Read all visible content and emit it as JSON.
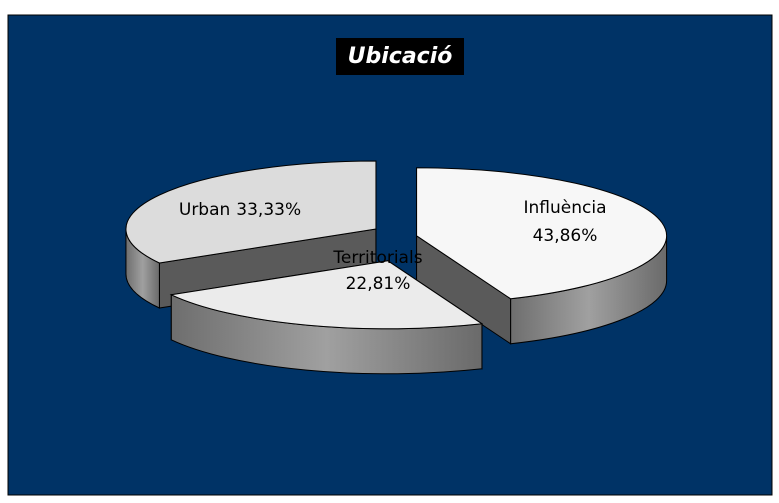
{
  "chart_data": {
    "type": "pie3d",
    "title": "Ubicació",
    "categories": [
      "Influència",
      "Territorials",
      "Urban"
    ],
    "values": [
      43.86,
      22.81,
      33.33
    ],
    "value_labels": [
      "43,86%",
      "22,81%",
      "33,33%"
    ],
    "colors": [
      "#f7f7f7",
      "#ebebeb",
      "#dcdcdc"
    ],
    "background": "#003366"
  }
}
